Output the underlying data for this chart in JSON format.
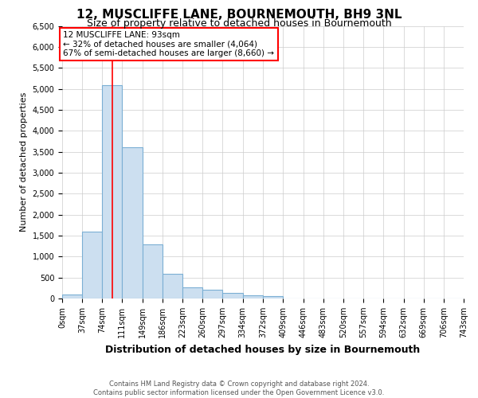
{
  "title": "12, MUSCLIFFE LANE, BOURNEMOUTH, BH9 3NL",
  "subtitle": "Size of property relative to detached houses in Bournemouth",
  "xlabel": "Distribution of detached houses by size in Bournemouth",
  "ylabel": "Number of detached properties",
  "footnote1": "Contains HM Land Registry data © Crown copyright and database right 2024.",
  "footnote2": "Contains public sector information licensed under the Open Government Licence v3.0.",
  "annotation_line1": "12 MUSCLIFFE LANE: 93sqm",
  "annotation_line2": "← 32% of detached houses are smaller (4,064)",
  "annotation_line3": "67% of semi-detached houses are larger (8,660) →",
  "bar_values": [
    100,
    1600,
    5080,
    3600,
    1300,
    580,
    270,
    200,
    130,
    80,
    55,
    0,
    0,
    0,
    0,
    0,
    0,
    0,
    0,
    0
  ],
  "bin_edges": [
    0,
    37,
    74,
    111,
    149,
    186,
    223,
    260,
    297,
    334,
    372,
    409,
    446,
    483,
    520,
    557,
    594,
    632,
    669,
    706,
    743
  ],
  "bar_color": "#ccdff0",
  "bar_edge_color": "#7bafd4",
  "red_line_x": 93,
  "ylim": [
    0,
    6500
  ],
  "yticks": [
    0,
    500,
    1000,
    1500,
    2000,
    2500,
    3000,
    3500,
    4000,
    4500,
    5000,
    5500,
    6000,
    6500
  ],
  "grid_color": "#cccccc",
  "background_color": "#ffffff",
  "title_fontsize": 11,
  "subtitle_fontsize": 9,
  "ylabel_fontsize": 8,
  "xlabel_fontsize": 9,
  "tick_fontsize": 7,
  "annotation_fontsize": 7.5,
  "footnote_fontsize": 6
}
